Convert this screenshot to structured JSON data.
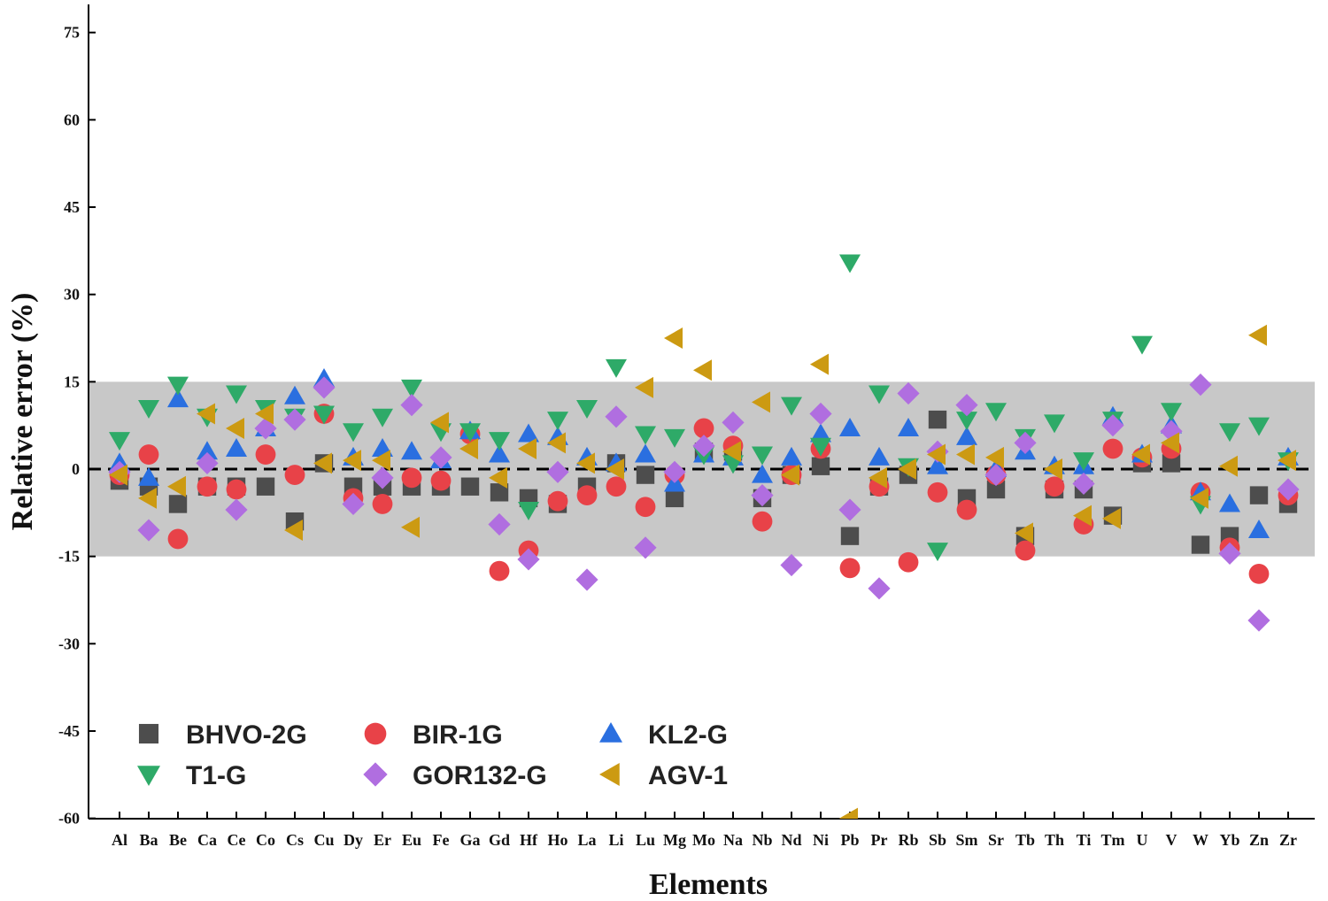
{
  "chart_data": {
    "type": "scatter",
    "title": "",
    "xlabel": "Elements",
    "ylabel": "Relative error (%)",
    "ylim": [
      -60,
      80
    ],
    "yticks": [
      75,
      60,
      45,
      30,
      15,
      0,
      -15,
      -30,
      -45,
      -60
    ],
    "band": [
      -15,
      15
    ],
    "band_color": "#c8c8c8",
    "zero_line": true,
    "grid": false,
    "legend_position": "bottom-left",
    "categories": [
      "Al",
      "Ba",
      "Be",
      "Ca",
      "Ce",
      "Co",
      "Cs",
      "Cu",
      "Dy",
      "Er",
      "Eu",
      "Fe",
      "Ga",
      "Gd",
      "Hf",
      "Ho",
      "La",
      "Li",
      "Lu",
      "Mg",
      "Mo",
      "Na",
      "Nb",
      "Nd",
      "Ni",
      "Pb",
      "Pr",
      "Rb",
      "Sb",
      "Sm",
      "Sr",
      "Tb",
      "Th",
      "Ti",
      "Tm",
      "U",
      "V",
      "W",
      "Yb",
      "Zn",
      "Zr"
    ],
    "series": [
      {
        "name": "BHVO-2G",
        "marker": "square",
        "color": "#4d4d4d",
        "values": [
          -2,
          -3,
          -6,
          -3,
          -3,
          -3,
          -9,
          1,
          -3,
          -3,
          -3,
          -3,
          -3,
          -4,
          -5,
          -6,
          -3,
          1,
          -1,
          -5,
          3,
          3,
          -5,
          -1,
          0.5,
          -11.5,
          -3,
          -1,
          8.5,
          -5,
          -3.5,
          -11.5,
          -3.5,
          -3.5,
          -8,
          1,
          1,
          -13,
          -11.5,
          -4.5,
          -6
        ]
      },
      {
        "name": "BIR-1G",
        "marker": "circle",
        "color": "#e84248",
        "values": [
          -1,
          2.5,
          -12,
          -3,
          -3.5,
          2.5,
          -1,
          9.5,
          -5,
          -6,
          -1.5,
          -2,
          6,
          -17.5,
          -14,
          -5.5,
          -4.5,
          -3,
          -6.5,
          -1,
          7,
          4,
          -9,
          -1,
          3.5,
          -17,
          -3,
          -16,
          -4,
          -7,
          -1,
          -14,
          -3,
          -9.5,
          3.5,
          2,
          3.5,
          -4,
          -13.5,
          -18,
          -4.5
        ]
      },
      {
        "name": "KL2-G",
        "marker": "triangle-up",
        "color": "#2a6fe0",
        "values": [
          1,
          -1.5,
          12,
          3,
          3.5,
          7,
          12.5,
          15.5,
          2,
          3.5,
          3,
          1.5,
          6.5,
          2.5,
          6,
          5.5,
          2,
          1,
          2.5,
          -2.5,
          2.5,
          2,
          -1,
          2,
          6,
          7,
          2,
          7,
          0.5,
          5.5,
          0,
          3,
          0.5,
          0.5,
          9,
          2.5,
          7.5,
          -4,
          -6,
          -10.5,
          2
        ]
      },
      {
        "name": "T1-G",
        "marker": "triangle-down",
        "color": "#2eaa68",
        "values": [
          5,
          10.5,
          14.5,
          9,
          13,
          10.5,
          9,
          9.5,
          6.5,
          9,
          14,
          6.5,
          6.5,
          5,
          -7,
          8.5,
          10.5,
          17.5,
          6,
          5.5,
          2.5,
          1,
          2.5,
          11,
          4,
          35.5,
          13,
          0.5,
          -14,
          8.5,
          10,
          5.5,
          8,
          1.5,
          8.5,
          21.5,
          10,
          -6,
          6.5,
          7.5,
          1.5
        ]
      },
      {
        "name": "GOR132-G",
        "marker": "diamond",
        "color": "#b06ee0",
        "values": [
          -0.5,
          -10.5,
          null,
          1,
          -7,
          7,
          8.5,
          14,
          -6,
          -1.5,
          11,
          2,
          null,
          -9.5,
          -15.5,
          -0.5,
          -19,
          9,
          -13.5,
          -0.5,
          4,
          8,
          -4.5,
          -16.5,
          9.5,
          -7,
          -20.5,
          13,
          3,
          11,
          -1,
          4.5,
          null,
          -2.5,
          7.5,
          null,
          6.5,
          14.5,
          -14.5,
          -26,
          -3.5
        ]
      },
      {
        "name": "AGV-1",
        "marker": "triangle-left",
        "color": "#cc9a12",
        "values": [
          -1,
          -5,
          -3,
          9.5,
          7,
          9.5,
          -10.5,
          1,
          1.5,
          1.5,
          -10,
          8,
          3.5,
          -1.5,
          3.5,
          4.5,
          1,
          0,
          14,
          22.5,
          17,
          3,
          11.5,
          -1,
          18,
          -60,
          -1.5,
          0,
          2.5,
          2.5,
          2,
          -11,
          0,
          -8,
          -8.5,
          2.5,
          4.5,
          -5,
          0.5,
          23,
          1.5
        ]
      }
    ]
  }
}
